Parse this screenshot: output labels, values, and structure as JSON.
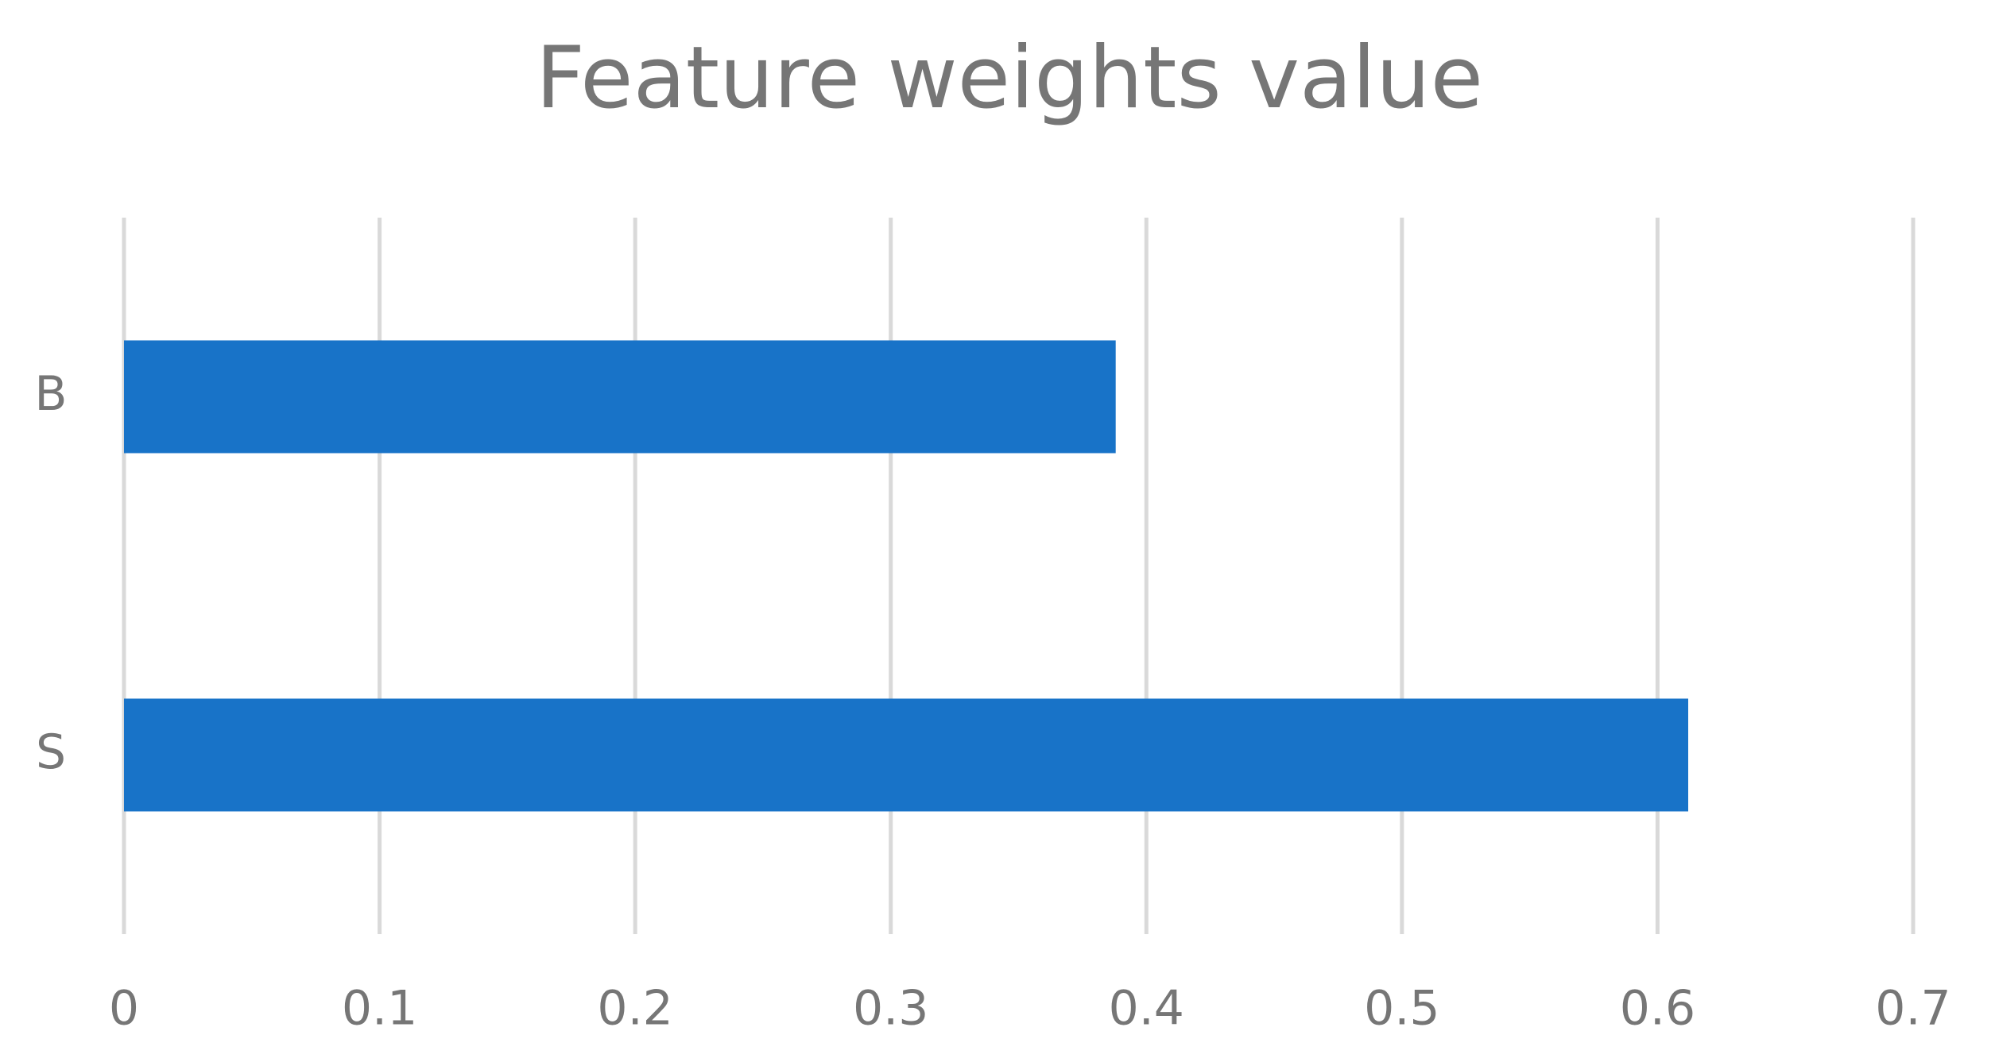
{
  "chart_data": {
    "type": "hbar",
    "title": "Feature weights value",
    "categories": [
      "B",
      "S"
    ],
    "values": [
      0.388,
      0.612
    ],
    "color": "#1873c8",
    "xlim": [
      0,
      0.7
    ],
    "xticks": [
      0,
      0.1,
      0.2,
      0.3,
      0.4,
      0.5,
      0.6,
      0.7
    ],
    "grid": true
  }
}
